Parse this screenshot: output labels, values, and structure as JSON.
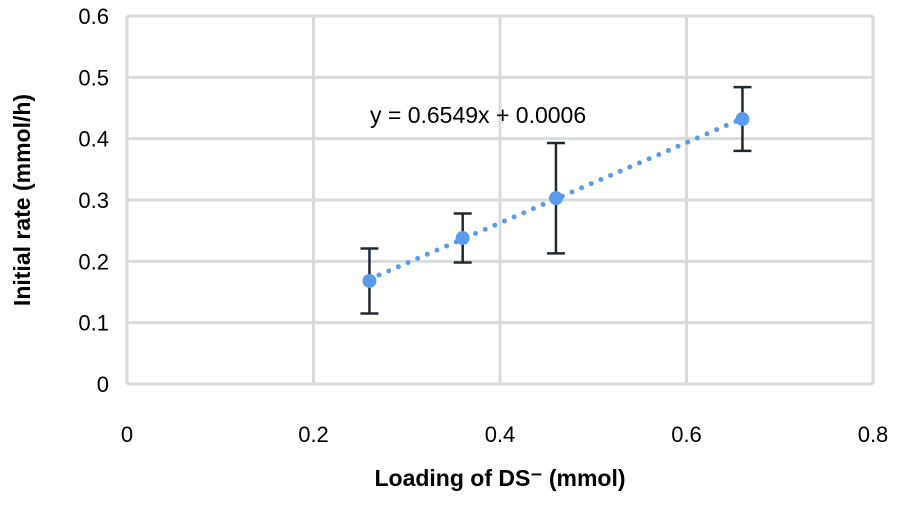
{
  "chart_data": {
    "type": "scatter",
    "title": "",
    "xlabel": "Loading of DS⁻ (mmol)",
    "ylabel": "Initial rate (mmol/h)",
    "xlim": [
      0,
      0.8
    ],
    "ylim": [
      0,
      0.6
    ],
    "xticks": [
      "0",
      "0.2",
      "0.4",
      "0.6",
      "0.8"
    ],
    "yticks": [
      "0",
      "0.1",
      "0.2",
      "0.3",
      "0.4",
      "0.5",
      "0.6"
    ],
    "grid": true,
    "points": [
      {
        "x": 0.26,
        "y": 0.168,
        "err": 0.053
      },
      {
        "x": 0.36,
        "y": 0.238,
        "err": 0.04
      },
      {
        "x": 0.46,
        "y": 0.303,
        "err": 0.09
      },
      {
        "x": 0.66,
        "y": 0.432,
        "err": 0.052
      }
    ],
    "trendline": {
      "slope": 0.6549,
      "intercept": 0.0006,
      "style": "dotted",
      "label": "y = 0.6549x + 0.0006"
    },
    "colors": {
      "marker": "#5b9bec",
      "error_bar": "#1f2a33",
      "grid": "#d9dcdc"
    }
  }
}
